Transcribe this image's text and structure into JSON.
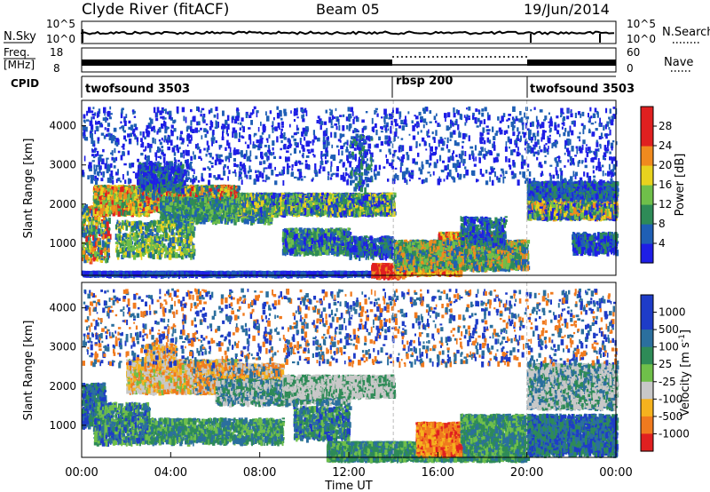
{
  "header": {
    "station": "Clyde River (fitACF)",
    "beam": "Beam 05",
    "date": "19/Jun/2014"
  },
  "noise_panel": {
    "left_label": "N.Sky",
    "right_label": "N.Search",
    "ticks_left": [
      "10^5",
      "10^0"
    ],
    "ticks_right": [
      "10^5",
      "10^0"
    ]
  },
  "freq_panel": {
    "left_label_1": "Freq.",
    "left_label_2": "[MHz]",
    "right_label": "Nave",
    "ticks_left": [
      "18",
      "8"
    ],
    "ticks_right": [
      "60",
      "0"
    ]
  },
  "cpid": {
    "label": "CPID",
    "segments": [
      {
        "name": "twofsound 3503",
        "start_h": 0.0,
        "end_h": 14.0
      },
      {
        "name": "rbsp 200",
        "start_h": 14.0,
        "end_h": 20.0
      },
      {
        "name": "twofsound 3503",
        "start_h": 20.0,
        "end_h": 24.0
      }
    ]
  },
  "axes": {
    "y_label": "Slant Range [km]",
    "x_label": "Time UT",
    "y_ticks": [
      "1000",
      "2000",
      "3000",
      "4000"
    ],
    "x_ticks": [
      "00:00",
      "04:00",
      "08:00",
      "12:00",
      "16:00",
      "20:00",
      "00:00"
    ]
  },
  "chart_data": [
    {
      "type": "heatmap",
      "name": "power",
      "x_range_hours": [
        0,
        24
      ],
      "y_range_km": [
        180,
        4650
      ],
      "colorbar": {
        "label": "Power [dB]",
        "ticks": [
          "4",
          "8",
          "12",
          "16",
          "20",
          "24",
          "28"
        ],
        "colors": [
          "#1e1ee6",
          "#1f5fb5",
          "#2e8b57",
          "#6fbf4a",
          "#e8d21e",
          "#f08a1e",
          "#e02020"
        ]
      }
    },
    {
      "type": "heatmap",
      "name": "velocity",
      "x_range_hours": [
        0,
        24
      ],
      "y_range_km": [
        180,
        4650
      ],
      "colorbar": {
        "label": "Velocity [m s",
        "label_sup": "-1",
        "label_end": "]",
        "ticks": [
          "1000",
          "500",
          "100",
          "25",
          "-25",
          "-100",
          "-500",
          "-1000"
        ],
        "colors": [
          "#1e3cc8",
          "#2b6f9e",
          "#2e8b57",
          "#6fbf4a",
          "#c8c8c8",
          "#f5b21e",
          "#f07a1e",
          "#e02020"
        ]
      }
    }
  ]
}
